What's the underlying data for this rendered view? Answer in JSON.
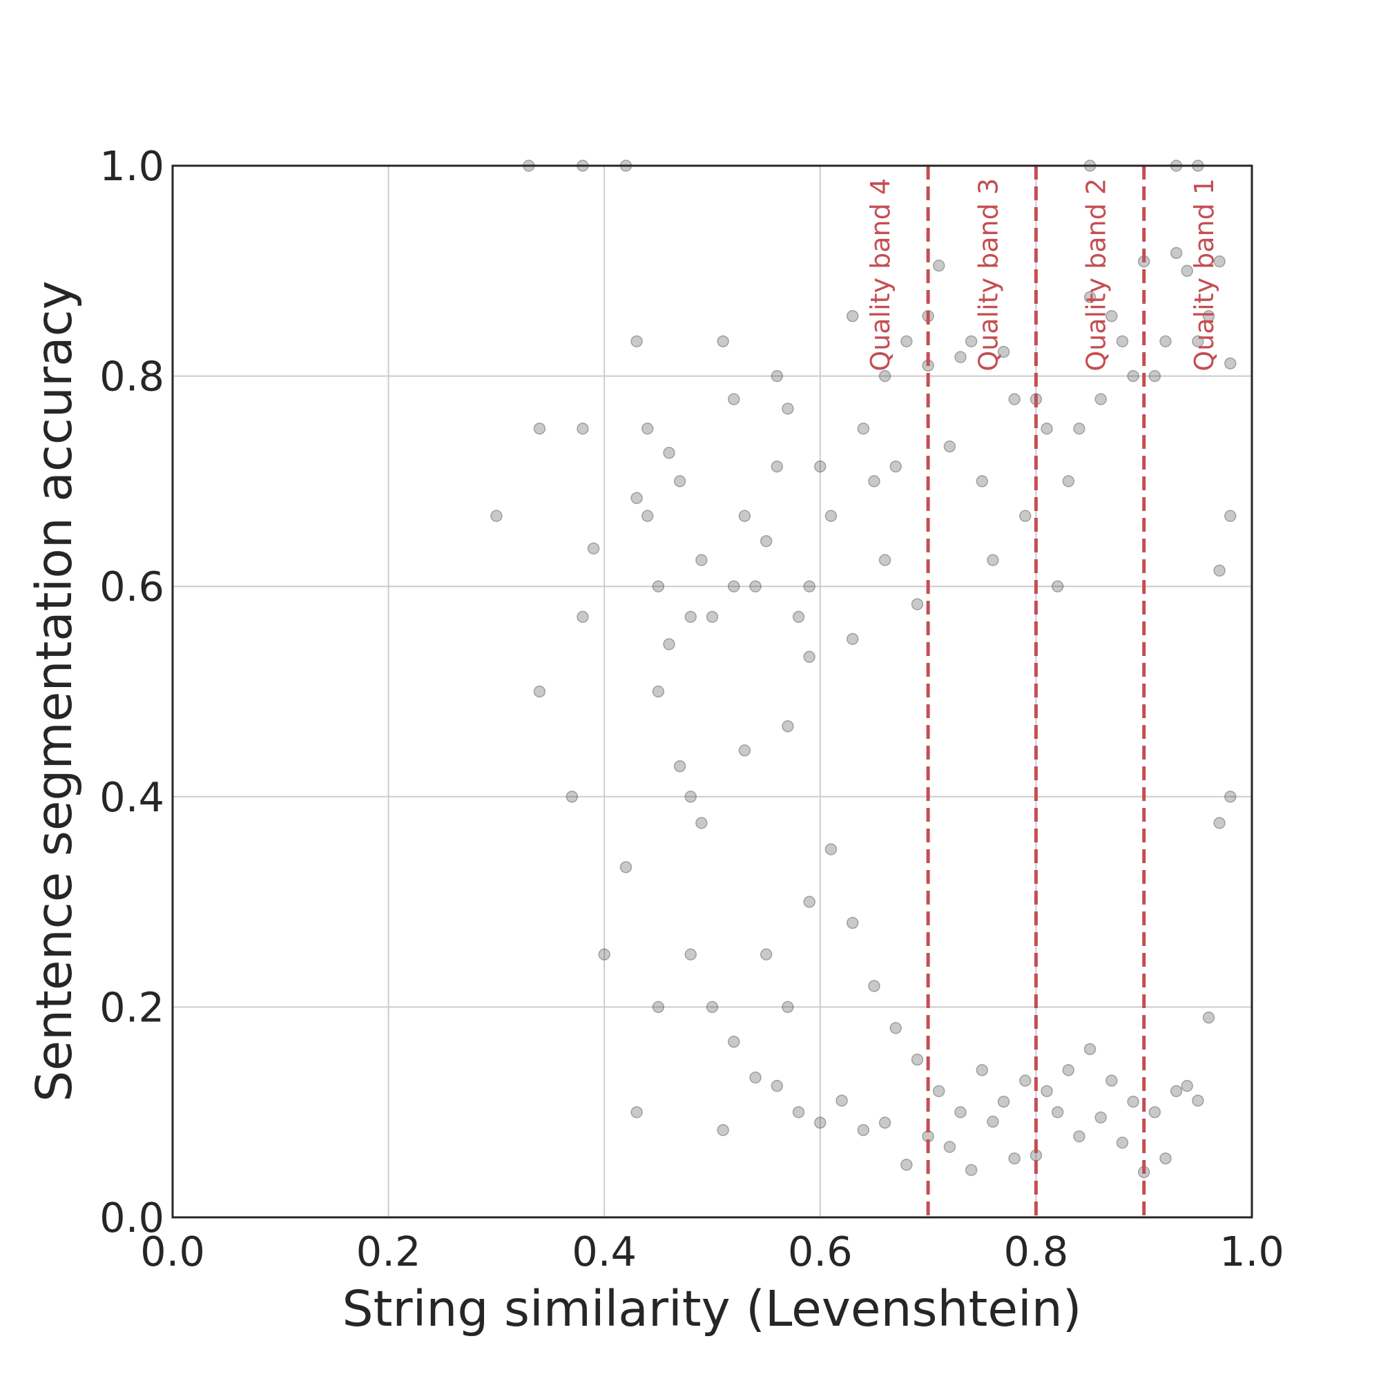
{
  "chart_data": {
    "type": "scatter",
    "title": "",
    "xlabel": "String similarity (Levenshtein)",
    "ylabel": "Sentence segmentation accuracy",
    "xlim": [
      0.0,
      1.0
    ],
    "ylim": [
      0.0,
      1.0
    ],
    "xticks": [
      "0.0",
      "0.2",
      "0.4",
      "0.6",
      "0.8",
      "1.0"
    ],
    "yticks": [
      "0.0",
      "0.2",
      "0.4",
      "0.6",
      "0.8",
      "1.0"
    ],
    "grid": true,
    "legend": "none",
    "colors": {
      "points": "#262626",
      "threshold_lines": "#c44e52",
      "grid": "#cccccc",
      "frame": "#262626"
    },
    "point_opacity": 0.25,
    "thresholds": [
      {
        "x": 0.7,
        "label": "Quality band 4",
        "label_side": "left"
      },
      {
        "x": 0.8,
        "label": "Quality band 3",
        "label_side": "left"
      },
      {
        "x": 0.9,
        "label": "Quality band 2",
        "label_side": "left"
      },
      {
        "x": 1.0,
        "label": "Quality band 1",
        "label_side": "left"
      }
    ],
    "threshold_line_style": "dashed",
    "series": [
      {
        "points": [
          [
            0.33,
            1.0
          ],
          [
            0.38,
            1.0
          ],
          [
            0.42,
            1.0
          ],
          [
            0.3,
            0.667
          ],
          [
            0.34,
            0.75
          ],
          [
            0.38,
            0.75
          ],
          [
            0.39,
            0.636
          ],
          [
            0.38,
            0.571
          ],
          [
            0.34,
            0.5
          ],
          [
            0.37,
            0.4
          ],
          [
            0.4,
            0.25
          ],
          [
            0.42,
            0.333
          ],
          [
            0.43,
            0.1
          ],
          [
            0.43,
            0.833
          ],
          [
            0.43,
            0.684
          ],
          [
            0.44,
            0.75
          ],
          [
            0.44,
            0.667
          ],
          [
            0.45,
            0.6
          ],
          [
            0.45,
            0.5
          ],
          [
            0.46,
            0.545
          ],
          [
            0.45,
            0.2
          ],
          [
            0.47,
            0.7
          ],
          [
            0.46,
            0.727
          ],
          [
            0.47,
            0.429
          ],
          [
            0.48,
            0.4
          ],
          [
            0.48,
            0.571
          ],
          [
            0.49,
            0.375
          ],
          [
            0.49,
            0.625
          ],
          [
            0.5,
            0.571
          ],
          [
            0.51,
            0.833
          ],
          [
            0.51,
            0.083
          ],
          [
            0.52,
            0.778
          ],
          [
            0.52,
            0.6
          ],
          [
            0.53,
            0.444
          ],
          [
            0.53,
            0.667
          ],
          [
            0.54,
            0.6
          ],
          [
            0.55,
            0.643
          ],
          [
            0.56,
            0.8
          ],
          [
            0.56,
            0.714
          ],
          [
            0.57,
            0.769
          ],
          [
            0.57,
            0.467
          ],
          [
            0.58,
            0.571
          ],
          [
            0.59,
            0.533
          ],
          [
            0.59,
            0.6
          ],
          [
            0.6,
            0.714
          ],
          [
            0.61,
            0.667
          ],
          [
            0.63,
            0.857
          ],
          [
            0.63,
            0.55
          ],
          [
            0.64,
            0.75
          ],
          [
            0.65,
            0.7
          ],
          [
            0.66,
            0.8
          ],
          [
            0.66,
            0.625
          ],
          [
            0.67,
            0.714
          ],
          [
            0.68,
            0.833
          ],
          [
            0.69,
            0.583
          ],
          [
            0.7,
            0.81
          ],
          [
            0.7,
            0.857
          ],
          [
            0.71,
            0.905
          ],
          [
            0.72,
            0.733
          ],
          [
            0.73,
            0.818
          ],
          [
            0.74,
            0.833
          ],
          [
            0.75,
            0.7
          ],
          [
            0.76,
            0.625
          ],
          [
            0.77,
            0.823
          ],
          [
            0.78,
            0.778
          ],
          [
            0.79,
            0.667
          ],
          [
            0.8,
            0.778
          ],
          [
            0.81,
            0.75
          ],
          [
            0.82,
            0.6
          ],
          [
            0.83,
            0.7
          ],
          [
            0.84,
            0.75
          ],
          [
            0.85,
            0.875
          ],
          [
            0.86,
            0.778
          ],
          [
            0.87,
            0.857
          ],
          [
            0.88,
            0.833
          ],
          [
            0.89,
            0.8
          ],
          [
            0.9,
            0.909
          ],
          [
            0.91,
            0.8
          ],
          [
            0.92,
            0.833
          ],
          [
            0.93,
            0.917
          ],
          [
            0.94,
            0.9
          ],
          [
            0.95,
            0.833
          ],
          [
            0.96,
            0.857
          ],
          [
            0.97,
            0.909
          ],
          [
            0.95,
            1.0
          ],
          [
            0.93,
            1.0
          ],
          [
            0.85,
            1.0
          ],
          [
            0.98,
            0.812
          ],
          [
            0.98,
            0.667
          ],
          [
            0.97,
            0.615
          ],
          [
            0.98,
            0.4
          ],
          [
            0.97,
            0.375
          ],
          [
            0.96,
            0.19
          ],
          [
            0.95,
            0.111
          ],
          [
            0.94,
            0.125
          ],
          [
            0.92,
            0.056
          ],
          [
            0.9,
            0.043
          ],
          [
            0.88,
            0.071
          ],
          [
            0.86,
            0.095
          ],
          [
            0.84,
            0.077
          ],
          [
            0.82,
            0.1
          ],
          [
            0.8,
            0.059
          ],
          [
            0.78,
            0.056
          ],
          [
            0.76,
            0.091
          ],
          [
            0.74,
            0.045
          ],
          [
            0.72,
            0.067
          ],
          [
            0.7,
            0.077
          ],
          [
            0.68,
            0.05
          ],
          [
            0.66,
            0.09
          ],
          [
            0.64,
            0.083
          ],
          [
            0.62,
            0.111
          ],
          [
            0.6,
            0.09
          ],
          [
            0.58,
            0.1
          ],
          [
            0.56,
            0.125
          ],
          [
            0.54,
            0.133
          ],
          [
            0.52,
            0.167
          ],
          [
            0.5,
            0.2
          ],
          [
            0.48,
            0.25
          ],
          [
            0.55,
            0.25
          ],
          [
            0.57,
            0.2
          ],
          [
            0.59,
            0.3
          ],
          [
            0.61,
            0.35
          ],
          [
            0.63,
            0.28
          ],
          [
            0.65,
            0.22
          ],
          [
            0.67,
            0.18
          ],
          [
            0.69,
            0.15
          ],
          [
            0.71,
            0.12
          ],
          [
            0.73,
            0.1
          ],
          [
            0.75,
            0.14
          ],
          [
            0.77,
            0.11
          ],
          [
            0.79,
            0.13
          ],
          [
            0.81,
            0.12
          ],
          [
            0.83,
            0.14
          ],
          [
            0.85,
            0.16
          ],
          [
            0.87,
            0.13
          ],
          [
            0.89,
            0.11
          ],
          [
            0.91,
            0.1
          ],
          [
            0.93,
            0.12
          ]
        ]
      }
    ]
  }
}
